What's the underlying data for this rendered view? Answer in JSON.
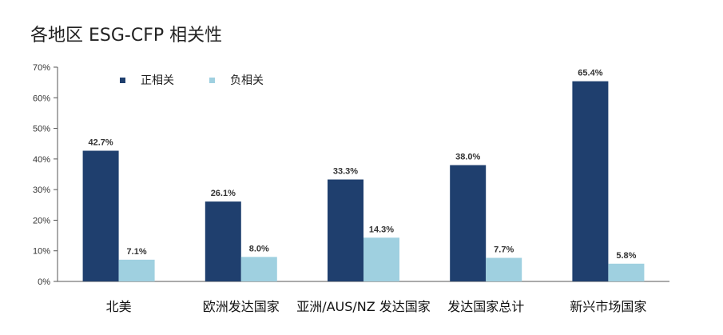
{
  "title": "各地区 ESG-CFP 相关性",
  "chart_data": {
    "type": "bar",
    "categories": [
      "北美",
      "欧洲发达国家",
      "亚洲/AUS/NZ 发达国家",
      "发达国家总计",
      "新兴市场国家"
    ],
    "series": [
      {
        "name": "正相关",
        "values": [
          42.7,
          26.1,
          33.3,
          38.0,
          65.4
        ],
        "color": "#1f3f6e",
        "labels": [
          "42.7%",
          "26.1%",
          "33.3%",
          "38.0%",
          "65.4%"
        ]
      },
      {
        "name": "负相关",
        "values": [
          7.1,
          8.0,
          14.3,
          7.7,
          5.8
        ],
        "color": "#9fd0e0",
        "labels": [
          "7.1%",
          "8.0%",
          "14.3%",
          "7.7%",
          "5.8%"
        ]
      }
    ],
    "ylim": [
      0,
      70
    ],
    "yticks": [
      "0%",
      "10%",
      "20%",
      "30%",
      "40%",
      "50%",
      "60%",
      "70%"
    ],
    "legend_position": "top-left",
    "grid": false
  }
}
